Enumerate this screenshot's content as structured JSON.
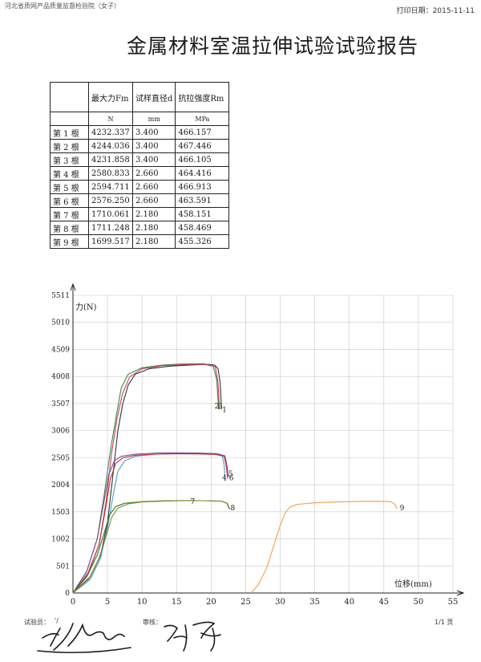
{
  "header": {
    "left_text": "河北省质网产品质量监督检验院（女子）",
    "print_date_label": "打印日期：",
    "print_date": "2015-11-11"
  },
  "title": "金属材料室温拉伸试验试验报告",
  "table": {
    "headers": [
      "",
      "最大力Fm",
      "试样直径d",
      "抗拉强度Rm"
    ],
    "units": [
      "",
      "N",
      "mm",
      "MPa"
    ],
    "rows": [
      [
        "第 1 根",
        "4232.337",
        "3.400",
        "466.157"
      ],
      [
        "第 2 根",
        "4244.036",
        "3.400",
        "467.446"
      ],
      [
        "第 3 根",
        "4231.858",
        "3.400",
        "466.105"
      ],
      [
        "第 4 根",
        "2580.833",
        "2.660",
        "464.416"
      ],
      [
        "第 5 根",
        "2594.711",
        "2.660",
        "466.913"
      ],
      [
        "第 6 根",
        "2576.250",
        "2.660",
        "463.591"
      ],
      [
        "第 7 根",
        "1710.061",
        "2.180",
        "458.151"
      ],
      [
        "第 8 根",
        "1711.248",
        "2.180",
        "458.469"
      ],
      [
        "第 9 根",
        "1699.517",
        "2.180",
        "455.326"
      ]
    ]
  },
  "chart_data": {
    "type": "line",
    "ylabel": "力(N)",
    "xlabel": "位移(mm)",
    "xlim": [
      0,
      55
    ],
    "ylim": [
      0,
      5511
    ],
    "x_ticks": [
      "0",
      "5",
      "10",
      "15",
      "20",
      "25",
      "30",
      "35",
      "40",
      "45",
      "50",
      "55"
    ],
    "y_ticks": [
      "0",
      "501",
      "1002",
      "1503",
      "2004",
      "2505",
      "3006",
      "3507",
      "4008",
      "4509",
      "5010",
      "5511"
    ],
    "grid": true,
    "series": [
      {
        "name": "1",
        "color": "#333333",
        "x": [
          0,
          2.5,
          4,
          5,
          5.8,
          6.5,
          7.2,
          8,
          9,
          11,
          14,
          17,
          19.5,
          20.5,
          21,
          21.3,
          21.5
        ],
        "y": [
          0,
          300,
          700,
          1300,
          2200,
          3000,
          3500,
          3850,
          4050,
          4150,
          4200,
          4220,
          4232,
          4220,
          4150,
          3900,
          3400
        ]
      },
      {
        "name": "2",
        "color": "#3a8a3a",
        "x": [
          0,
          2,
          3.5,
          4.5,
          5.5,
          6.3,
          7,
          8,
          10,
          13,
          16,
          19,
          20.3,
          20.8,
          21.1
        ],
        "y": [
          0,
          400,
          1000,
          1800,
          2700,
          3300,
          3800,
          4050,
          4170,
          4220,
          4240,
          4244,
          4200,
          3950,
          3400
        ]
      },
      {
        "name": "3",
        "color": "#c84060",
        "x": [
          0,
          2.2,
          3.8,
          4.8,
          5.6,
          6.4,
          7.2,
          8.2,
          10,
          13,
          16,
          19,
          20.6,
          21,
          21.2
        ],
        "y": [
          0,
          380,
          900,
          1700,
          2600,
          3250,
          3700,
          4000,
          4150,
          4210,
          4228,
          4232,
          4190,
          3900,
          3400
        ]
      },
      {
        "name": "4",
        "color": "#4a9ac8",
        "x": [
          0,
          2.5,
          4,
          5,
          5.8,
          6.5,
          7.5,
          9,
          12,
          15,
          18,
          20.5,
          21.6,
          21.9,
          22
        ],
        "y": [
          0,
          250,
          650,
          1200,
          1800,
          2250,
          2450,
          2530,
          2570,
          2580,
          2580,
          2575,
          2540,
          2350,
          2100
        ]
      },
      {
        "name": "5",
        "color": "#7a4a9a",
        "x": [
          0,
          2,
          3.5,
          4.5,
          5.2,
          6,
          7,
          9,
          12,
          15,
          18,
          20.8,
          22,
          22.3,
          22.5
        ],
        "y": [
          0,
          400,
          1000,
          1700,
          2200,
          2450,
          2530,
          2570,
          2590,
          2594,
          2590,
          2580,
          2540,
          2350,
          2150
        ]
      },
      {
        "name": "6",
        "color": "#c03030",
        "x": [
          0,
          2.2,
          3.8,
          4.7,
          5.4,
          6.2,
          7.2,
          9,
          12,
          15,
          18,
          20.6,
          21.9,
          22.2,
          22.4
        ],
        "y": [
          0,
          350,
          900,
          1550,
          2100,
          2400,
          2500,
          2550,
          2570,
          2576,
          2574,
          2565,
          2530,
          2340,
          2120
        ]
      },
      {
        "name": "7",
        "color": "#2a7a2a",
        "x": [
          0,
          2,
          3.5,
          4.5,
          5.3,
          6.2,
          7.5,
          10,
          13,
          16,
          19,
          21.5,
          22.3,
          22.6
        ],
        "y": [
          0,
          300,
          700,
          1100,
          1450,
          1600,
          1660,
          1690,
          1705,
          1710,
          1708,
          1700,
          1660,
          1560
        ]
      },
      {
        "name": "8",
        "color": "#8a8a2a",
        "x": [
          0,
          2.3,
          3.8,
          4.8,
          5.6,
          6.5,
          8,
          10,
          13,
          16,
          19,
          21.6,
          22.4,
          22.7
        ],
        "y": [
          0,
          260,
          650,
          1050,
          1400,
          1570,
          1650,
          1685,
          1700,
          1711,
          1708,
          1700,
          1650,
          1550
        ]
      },
      {
        "name": "9",
        "color": "#f0a050",
        "x": [
          25.8,
          26.8,
          28,
          29,
          30,
          30.8,
          31.5,
          32.5,
          35,
          38,
          41,
          44,
          46,
          46.6,
          46.9
        ],
        "y": [
          0,
          150,
          450,
          850,
          1250,
          1500,
          1600,
          1640,
          1670,
          1685,
          1695,
          1700,
          1690,
          1640,
          1560
        ]
      }
    ],
    "curve_labels": [
      {
        "text": "2",
        "x": 20.5,
        "y": 3420
      },
      {
        "text": "3",
        "x": 21.0,
        "y": 3420
      },
      {
        "text": "1",
        "x": 21.6,
        "y": 3350
      },
      {
        "text": "4",
        "x": 21.6,
        "y": 2090
      },
      {
        "text": "5",
        "x": 22.5,
        "y": 2160
      },
      {
        "text": "6",
        "x": 22.6,
        "y": 2090
      },
      {
        "text": "7",
        "x": 17.0,
        "y": 1650
      },
      {
        "text": "8",
        "x": 22.8,
        "y": 1530
      },
      {
        "text": "9",
        "x": 47.3,
        "y": 1530
      }
    ]
  },
  "footer": {
    "tester_label": "试验员：",
    "tester_mark": "'/",
    "reviewer_label": "审核：",
    "page_label": "1/1 页"
  }
}
